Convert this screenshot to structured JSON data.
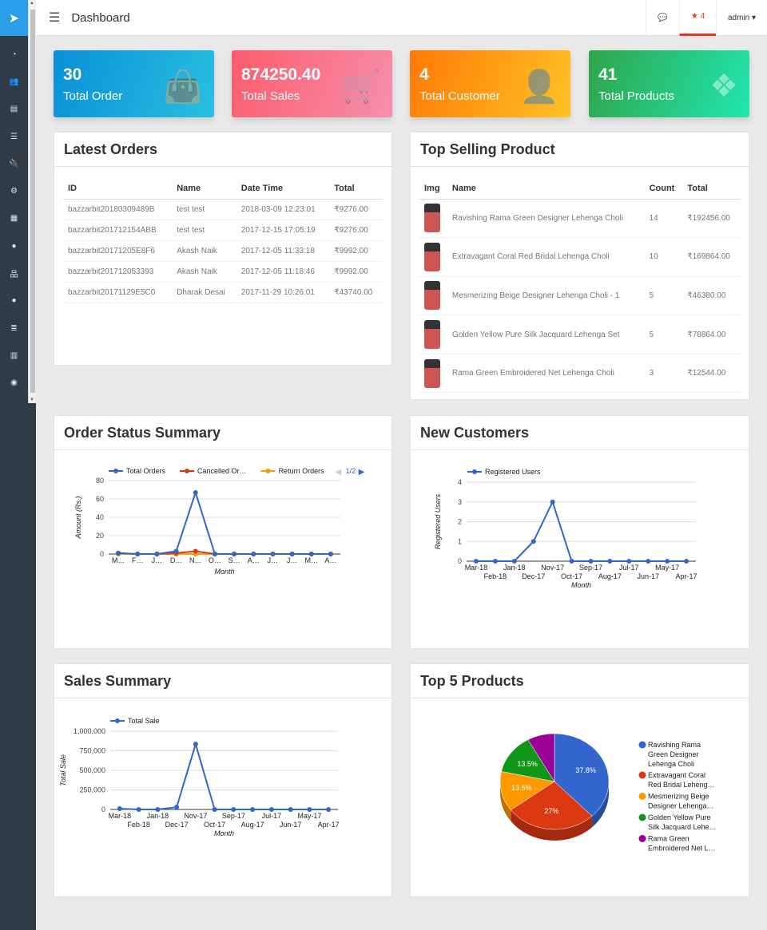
{
  "header": {
    "title": "Dashboard",
    "notif_count": "4",
    "user": "admin"
  },
  "cards": [
    {
      "value": "30",
      "label": "Total Order",
      "color1": "#0a8fd8",
      "color2": "#28c0e0",
      "icon": "shopping-bag-icon"
    },
    {
      "value": "874250.40",
      "label": "Total Sales",
      "color1": "#fd5c6c",
      "color2": "#f68fab",
      "icon": "shopping-cart-icon"
    },
    {
      "value": "4",
      "label": "Total Customer",
      "color1": "#ff7a05",
      "color2": "#ffc226",
      "icon": "user-icon"
    },
    {
      "value": "41",
      "label": "Total Products",
      "color1": "#2ea54a",
      "color2": "#21e6b0",
      "icon": "dropbox-icon"
    }
  ],
  "latest_orders": {
    "title": "Latest Orders",
    "columns": [
      "ID",
      "Name",
      "Date Time",
      "Total"
    ],
    "rows": [
      [
        "bazzarbit20180309489B",
        "test test",
        "2018-03-09 12:23:01",
        "₹9276.00"
      ],
      [
        "bazzarbit201712154ABB",
        "test test",
        "2017-12-15 17:05:19",
        "₹9276.00"
      ],
      [
        "bazzarbit20171205E8F6",
        "Akash Naik",
        "2017-12-05 11:33:18",
        "₹9992.00"
      ],
      [
        "bazzarbit201712053393",
        "Akash Naik",
        "2017-12-05 11:18:46",
        "₹9992.00"
      ],
      [
        "bazzarbit20171129E5C0",
        "Dharak Desai",
        "2017-11-29 10:26:01",
        "₹43740.00"
      ]
    ]
  },
  "top_selling": {
    "title": "Top Selling Product",
    "columns": [
      "Img",
      "Name",
      "Count",
      "Total"
    ],
    "rows": [
      [
        "Ravishing Rama Green Designer Lehenga Choli",
        "14",
        "₹192456.00"
      ],
      [
        "Extravagant Coral Red Bridal Lehenga Choli",
        "10",
        "₹169864.00"
      ],
      [
        "Mesmerizing Beige Designer Lehenga Choli - 1",
        "5",
        "₹46380.00"
      ],
      [
        "Golden Yellow Pure Silk Jacquard Lehenga Set",
        "5",
        "₹78864.00"
      ],
      [
        "Rama Green Embroidered Net Lehenga Choli",
        "3",
        "₹12544.00"
      ]
    ]
  },
  "panels": {
    "order_status": "Order Status Summary",
    "new_customers": "New Customers",
    "sales": "Sales Summary",
    "top5": "Top 5 Products"
  },
  "chart_data": [
    {
      "type": "line",
      "title": "Order Status Summary",
      "xlabel": "Month",
      "ylabel": "Amount (Rs.)",
      "ylim": [
        0,
        80
      ],
      "yticks": [
        "0",
        "20",
        "40",
        "60",
        "80"
      ],
      "categories": [
        "M…",
        "F…",
        "J…",
        "D…",
        "N…",
        "O…",
        "S…",
        "A…",
        "J…",
        "J…",
        "M…",
        "A…"
      ],
      "legend_page": "1/2",
      "series": [
        {
          "name": "Total Orders",
          "color": "#3366cc",
          "values": [
            1,
            0,
            0,
            3,
            67,
            0,
            0,
            0,
            0,
            0,
            0,
            0
          ]
        },
        {
          "name": "Cancelled Or…",
          "color": "#dc3912",
          "values": [
            1,
            0,
            0,
            1,
            3,
            0,
            0,
            0,
            0,
            0,
            0,
            0
          ]
        },
        {
          "name": "Return Orders",
          "color": "#ff9900",
          "values": [
            0,
            0,
            0,
            0,
            0,
            0,
            0,
            0,
            0,
            0,
            0,
            0
          ]
        },
        {
          "name": "",
          "color": "#109618",
          "values": [
            0,
            0,
            0,
            0,
            0,
            0,
            0,
            0,
            0,
            0,
            0,
            0
          ]
        }
      ]
    },
    {
      "type": "line",
      "title": "New Customers",
      "xlabel": "Month",
      "ylabel": "Registered Users",
      "ylim": [
        0,
        4
      ],
      "yticks": [
        "0",
        "1",
        "2",
        "3",
        "4"
      ],
      "categories": [
        "Mar-18",
        "Feb-18",
        "Jan-18",
        "Dec-17",
        "Nov-17",
        "Oct-17",
        "Sep-17",
        "Aug-17",
        "Jul-17",
        "Jun-17",
        "May-17",
        "Apr-17"
      ],
      "series": [
        {
          "name": "Registered Users",
          "color": "#3366cc",
          "values": [
            0,
            0,
            0,
            1,
            3,
            0,
            0,
            0,
            0,
            0,
            0,
            0
          ]
        }
      ]
    },
    {
      "type": "line",
      "title": "Sales Summary",
      "xlabel": "Month",
      "ylabel": "Total Sale",
      "ylim": [
        0,
        1000000
      ],
      "yticks": [
        "0",
        "250,000",
        "500,000",
        "750,000",
        "1,000,000"
      ],
      "categories": [
        "Mar-18",
        "Feb-18",
        "Jan-18",
        "Dec-17",
        "Nov-17",
        "Oct-17",
        "Sep-17",
        "Aug-17",
        "Jul-17",
        "Jun-17",
        "May-17",
        "Apr-17"
      ],
      "series": [
        {
          "name": "Total Sale",
          "color": "#3366cc",
          "values": [
            10000,
            0,
            0,
            30000,
            835000,
            0,
            0,
            0,
            0,
            0,
            0,
            0
          ]
        }
      ]
    },
    {
      "type": "pie",
      "title": "Top 5 Products",
      "slices": [
        {
          "label": [
            "Ravishing Rama",
            "Green Designer",
            "Lehenga Choli"
          ],
          "value": 37.8,
          "text": "37.8%",
          "color": "#3366cc"
        },
        {
          "label": [
            "Extravagant Coral",
            "Red Bridal Leheng…"
          ],
          "value": 27,
          "text": "27%",
          "color": "#dc3912"
        },
        {
          "label": [
            "Mesmerizing Beige",
            "Designer Lehenga…"
          ],
          "value": 13.5,
          "text": "13.5%",
          "color": "#ff9900"
        },
        {
          "label": [
            "Golden Yellow Pure",
            "Silk Jacquard Lehe…"
          ],
          "value": 13.5,
          "text": "13.5%",
          "color": "#109618"
        },
        {
          "label": [
            "Rama Green",
            "Embroidered Net L…"
          ],
          "value": 8.1,
          "text": "",
          "color": "#990099"
        }
      ]
    }
  ]
}
